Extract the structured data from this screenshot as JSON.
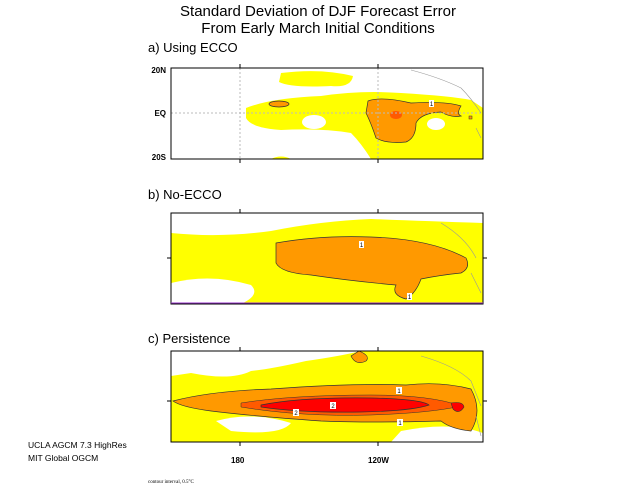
{
  "title_line1": "Standard Deviation of DJF Forecast Error",
  "title_line2": "From Early March Initial Conditions",
  "panels": [
    {
      "label": "a) Using ECCO",
      "contour_labels": [
        "1"
      ]
    },
    {
      "label": "b) No-ECCO",
      "contour_labels": [
        "1",
        "1"
      ]
    },
    {
      "label": "c) Persistence",
      "contour_labels": [
        "1",
        "2",
        "2",
        "1"
      ]
    }
  ],
  "lat_ticks": [
    "20N",
    "EQ",
    "20S"
  ],
  "lon_ticks": [
    "180",
    "120W"
  ],
  "credits": [
    "UCLA AGCM 7.3 HighRes",
    "MIT Global OGCM"
  ],
  "contour_interval": "contour interval, 0.5°C",
  "colors": {
    "level1": "#ffff00",
    "level2": "#ff9900",
    "level3": "#ff5a00",
    "level4": "#ff0000"
  }
}
